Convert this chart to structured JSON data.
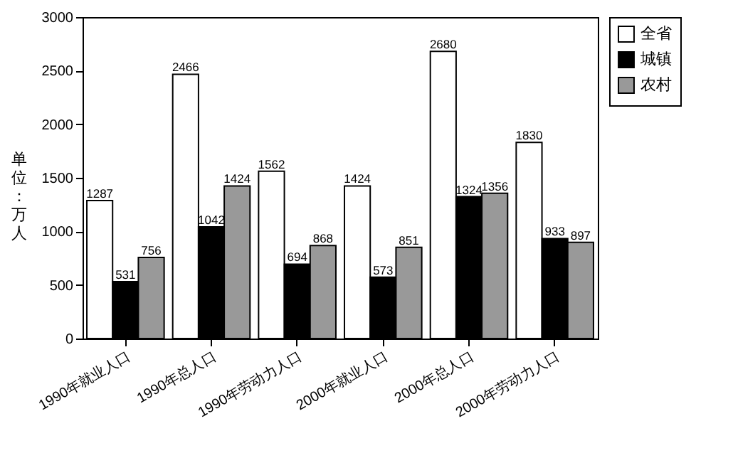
{
  "chart_data": {
    "type": "bar",
    "ylabel": "单位：万人",
    "categories": [
      "1990年就业人口",
      "1990年总人口",
      "1990年劳动力人口",
      "2000年就业人口",
      "2000年总人口",
      "2000年劳动力人口"
    ],
    "series": [
      {
        "name": "全省",
        "color": "#ffffff",
        "values": [
          1287,
          2466,
          1562,
          1424,
          2680,
          1830
        ]
      },
      {
        "name": "城镇",
        "color": "#000000",
        "values": [
          531,
          1042,
          694,
          573,
          1324,
          933
        ]
      },
      {
        "name": "农村",
        "color": "#999999",
        "values": [
          756,
          1424,
          868,
          851,
          1356,
          897
        ]
      }
    ],
    "ylim": [
      0,
      3000
    ],
    "yticks": [
      0,
      500,
      1000,
      1500,
      2000,
      2500,
      3000
    ],
    "data_labels": true,
    "grid": false,
    "legend": "right"
  }
}
